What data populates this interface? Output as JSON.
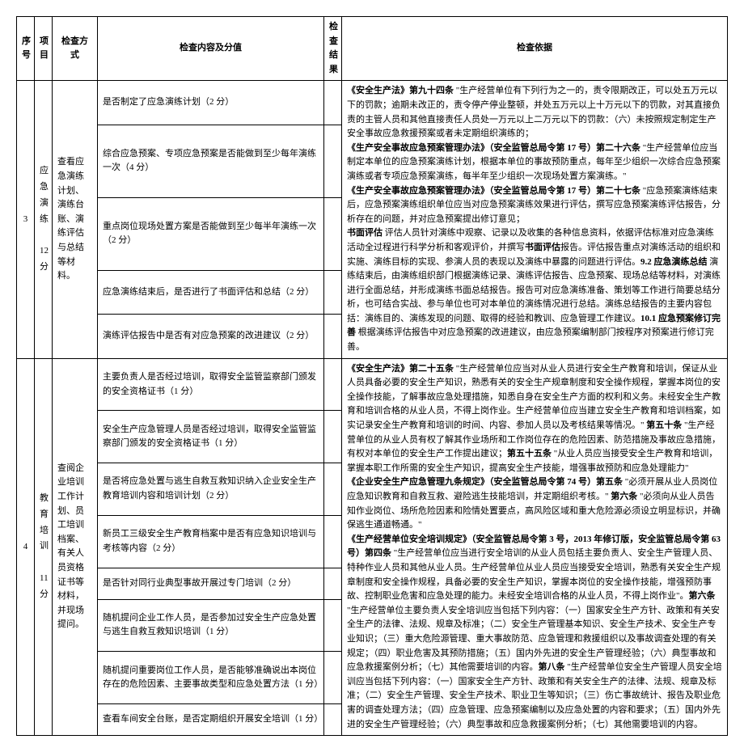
{
  "headers": {
    "seq": "序号",
    "item": "项目",
    "method": "检查方式",
    "content": "检查内容及分值",
    "result": "检查结果",
    "basis": "检查依据"
  },
  "row3": {
    "seq": "3",
    "item": "应急演练\n\n12\n分",
    "method": "查看应急演练计划、演练台账、演练评估与总结等材料。",
    "contents": [
      "是否制定了应急演练计划（2 分）",
      "综合应急预案、专项应急预案是否能做到至少每年演练一次（4 分）",
      "重点岗位现场处置方案是否能做到至少每半年演练一次（2 分）",
      "应急演练结束后，是否进行了书面评估和总结（2 分）",
      "演练评估报告中是否有对应急预案的改进建议（2 分）"
    ],
    "basis": "《安全生产法》第九十四条 \"生产经营单位有下列行为之一的，责令限期改正，可以处五万元以下的罚款；逾期未改正的，责令停产停业整顿，并处五万元以上十万元以下的罚款，对其直接负责的主管人员和其他直接责任人员处一万元以上二万元以下的罚款：（六）未按照规定制定生产安全事故应急救援预案或者未定期组织演练的；\n《生产安全事故应急预案管理办法》（安全监管总局令第 17 号）第二十六条 \"生产经营单位应当制定本单位的应急预案演练计划，根据本单位的事故预防重点，每年至少组织一次综合应急预案演练或者专项应急预案演练，每半年至少组织一次现场处置方案演练。\"\n《生产安全事故应急预案管理办法》（安全监管总局令第 17 号）第二十七条 \"应急预案演练结束后，应急预案演练组织单位应当对应急预案演练效果进行评估，撰写应急预案演练评估报告，分析存在的问题，并对应急预案提出修订意见；\n书面评估  评估人员针对演练中观察、记录以及收集的各种信息资料，依据评估标准对应急演练活动全过程进行科学分析和客观评价，并撰写书面评估报告。评估报告重点对演练活动的组织和实施、演练目标的实现、参演人员的表现以及演练中暴露的问题进行评估。9.2 应急演练总结  演练结束后，由演练组织部门根据演练记录、演练评估报告、应急预案、现场总结等材料，对演练进行全面总结，并形成演练书面总结报告。报告可对应急演练准备、策划等工作进行简要总结分析，也可结合实战、参与单位也可对本单位的演练情况进行总结。演练总结报告的主要内容包括：演练目的、演练发现的问题、取得的经验和教训、应急管理工作建议。10.1 应急预案修订完善  根据演练评估报告中对应急预案的改进建议，由应急预案编制部门按程序对预案进行修订完善。"
  },
  "row4": {
    "seq": "4",
    "item": "教育培训\n\n11\n分",
    "method": "查阅企业培训工作计划、员工培训档案、有关人员资格证书等材料，并现场提问。",
    "contents": [
      "主要负责人是否经过培训，取得安全监管监察部门颁发的安全资格证书（1 分）",
      "安全生产应急管理人员是否经过培训，取得安全监管监察部门颁发的安全资格证书（1 分）",
      "是否将应急处置与逃生自救互救知识纳入企业安全生产教育培训内容和培训计划（2 分）",
      "新员工三级安全生产教育档案中是否有应急知识培训与考核等内容（2 分）",
      "是否针对同行业典型事故开展过专门培训（2 分）",
      "随机提问企业工作人员，是否参加过安全生产应急处置与逃生自救互救知识培训（1 分）",
      "随机提问重要岗位工作人员，是否能够准确说出本岗位存在的危险因素、主要事故类型和应急处置方法（1 分）",
      "查看车间安全台账，是否定期组织开展安全培训（1 分）"
    ],
    "basis": "《安全生产法》第二十五条 \"生产经营单位应当对从业人员进行安全生产教育和培训，保证从业人员具备必要的安全生产知识，熟悉有关的安全生产规章制度和安全操作规程，掌握本岗位的安全操作技能，了解事故应急处理措施，知悉自身在安全生产方面的权利和义务。未经安全生产教育和培训合格的从业人员，不得上岗作业。生产经营单位应当建立安全生产教育和培训档案，如实记录安全生产教育和培训的时间、内容、参加人员以及考核结果等情况。\" 第五十条 \"生产经营单位的从业人员有权了解其作业场所和工作岗位存在的危险因素、防范措施及事故应急措施，有权对本单位的安全生产工作提出建议；第五十五条 \"从业人员应当接受安全生产教育和培训，掌握本职工作所需的安全生产知识，提高安全生产技能，增强事故预防和应急处理能力\"\n《企业安全生产应急管理九条规定》（安全监管总局令第 74 号）第五条 \"必须开展从业人员岗位应急知识教育和自救互救、避险逃生技能培训，并定期组织考核。\" 第六条 \"必须向从业人员告知作业岗位、场所危险因素和险情处置要点，高风险区域和重大危险源必须设立明显标识，并确保逃生通道畅通。\"\n《生产经营单位安全培训规定》（安全监管总局令第 3 号，2013 年修订版，安全监管总局令第 63 号）第四条 \"生产经营单位应当进行安全培训的从业人员包括主要负责人、安全生产管理人员、特种作业人员和其他从业人员。生产经营单位从业人员应当接受安全培训，熟悉有关安全生产规章制度和安全操作规程，具备必要的安全生产知识，掌握本岗位的安全操作技能，增强预防事故、控制职业危害和应急处理的能力。未经安全培训合格的从业人员，不得上岗作业\"。第六条 \"生产经营单位主要负责人安全培训应当包括下列内容：（一）国家安全生产方针、政策和有关安全生产的法律、法规、规章及标准；（二）安全生产管理基本知识、安全生产技术、安全生产专业知识；（三）重大危险源管理、重大事故防范、应急管理和救援组织以及事故调查处理的有关规定；（四）职业危害及其预防措施；（五）国内外先进的安全生产管理经验；（六）典型事故和应急救援案例分析；（七）其他需要培训的内容。第八条 \"生产经营单位安全生产管理人员安全培训应当包括下列内容：（一）国家安全生产方针、政策和有关安全生产的法律、法规、规章及标准；（二）安全生产管理、安全生产技术、职业卫生等知识；（三）伤亡事故统计、报告及职业危害的调查处理方法；（四）应急管理、应急预案编制以及应急处置的内容和要求；（五）国内外先进的安全生产管理经验；（六）典型事故和应急救援案例分析；（七）其他需要培训的内容。"
  }
}
